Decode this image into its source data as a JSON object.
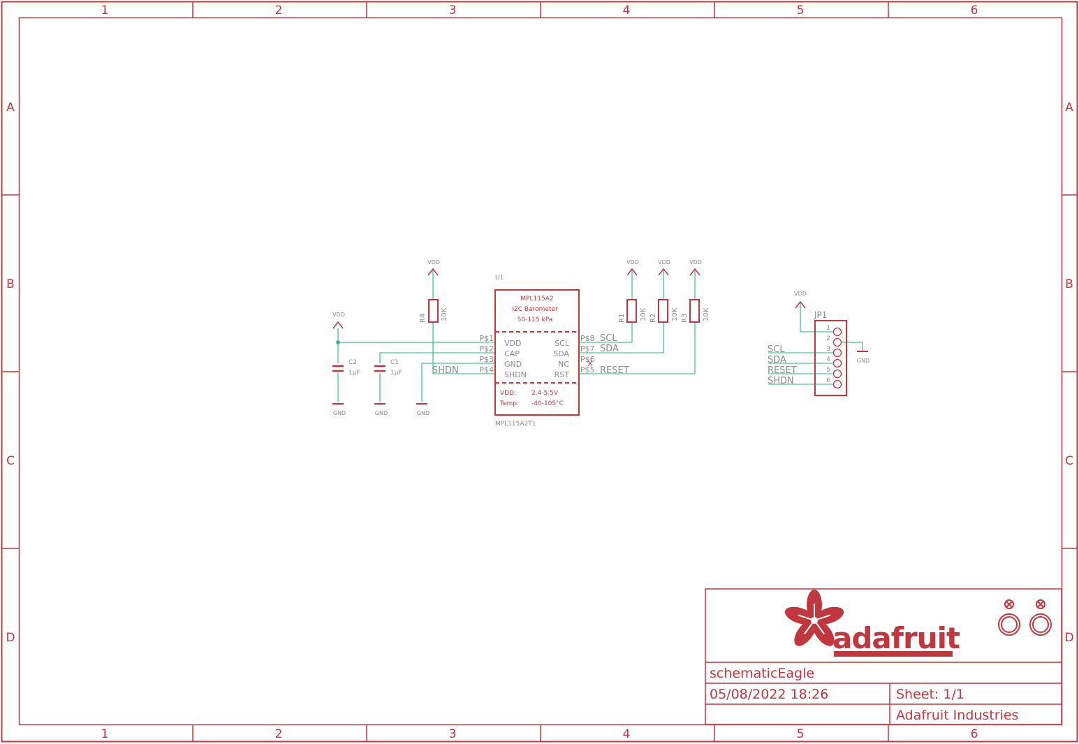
{
  "sheet": {
    "col_labels": [
      "1",
      "2",
      "3",
      "4",
      "5",
      "6"
    ],
    "row_labels": [
      "A",
      "B",
      "C",
      "D"
    ]
  },
  "u1": {
    "ref": "U1",
    "title": "MPL115A2",
    "subtitle": "I2C Barometer",
    "range": "50-115 kPa",
    "device": "MPL115A2T1",
    "left_pins": [
      {
        "pad": "P$1",
        "name": "VDD"
      },
      {
        "pad": "P$2",
        "name": "CAP"
      },
      {
        "pad": "P$3",
        "name": "GND"
      },
      {
        "pad": "P$4",
        "name": "SHDN"
      }
    ],
    "right_pins": [
      {
        "pad": "P$8",
        "name": "SCL",
        "net": "SCL"
      },
      {
        "pad": "P$7",
        "name": "SDA",
        "net": "SDA"
      },
      {
        "pad": "P$6",
        "name": "NC",
        "net": ""
      },
      {
        "pad": "P$5",
        "name": "RST",
        "net": "RESET"
      }
    ],
    "spec_vdd_label": "VDD:",
    "spec_vdd_value": "2.4-5.5V",
    "spec_temp_label": "Temp:",
    "spec_temp_value": "-40-105°C"
  },
  "resistors": [
    {
      "ref": "R4",
      "value": "10K"
    },
    {
      "ref": "R1",
      "value": "10K"
    },
    {
      "ref": "R2",
      "value": "10K"
    },
    {
      "ref": "R3",
      "value": "10K"
    }
  ],
  "capacitors": [
    {
      "ref": "C2",
      "value": "1µF"
    },
    {
      "ref": "C1",
      "value": "1µF"
    }
  ],
  "nets": {
    "vdd": "VDD",
    "gnd": "GND",
    "shdn": "SHDN"
  },
  "jp1": {
    "ref": "JP1",
    "pins": [
      "1",
      "2",
      "3",
      "4",
      "5",
      "6"
    ],
    "net_labels": [
      "SCL",
      "SDA",
      "RESET",
      "SHDN"
    ]
  },
  "title_block": {
    "logo_text": "adafruit",
    "drawing_name": "schematicEagle",
    "date": "05/08/2022 18:26",
    "sheet": "Sheet: 1/1",
    "company": "Adafruit Industries"
  },
  "colors": {
    "frame": "#c0383e",
    "wire": "#2fae8a",
    "text_grey": "#8a8a8a"
  }
}
